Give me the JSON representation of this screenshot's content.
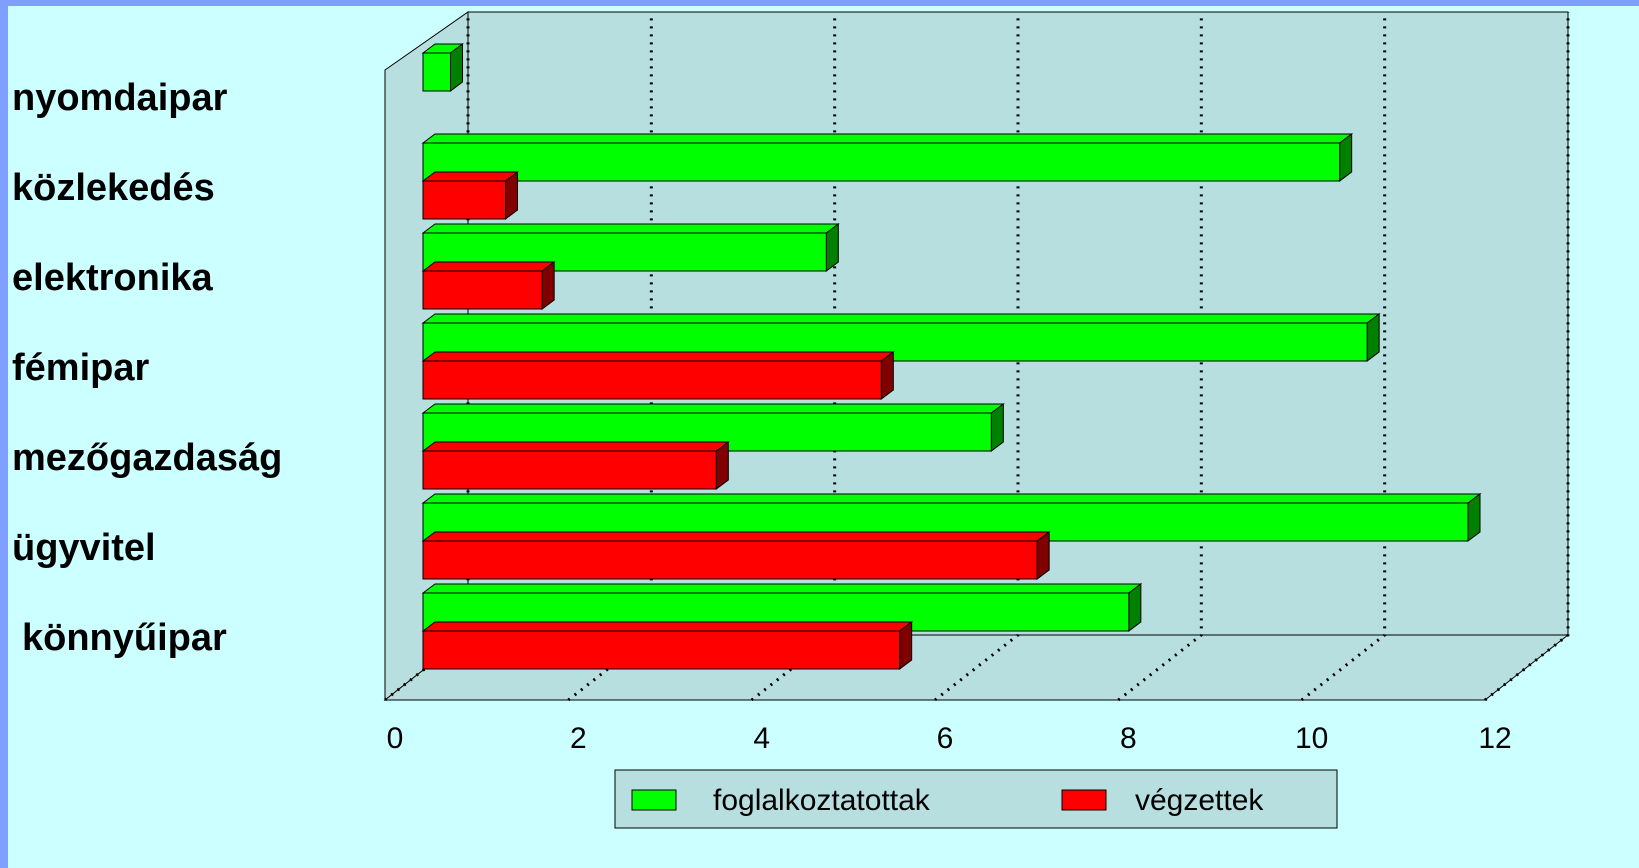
{
  "chart_data": {
    "type": "bar3d-horizontal",
    "categories": [
      "nyomdaipar",
      "közlekedés",
      "elektronika",
      "fémipar",
      "mezőgazdaság",
      "ügyvitel",
      "könnyűipar"
    ],
    "series": [
      {
        "name": "foglalkoztatottak",
        "color": "#00ff00",
        "side": "#008000",
        "values": [
          0.3,
          10,
          4.4,
          10.3,
          6.2,
          11.4,
          7.7
        ]
      },
      {
        "name": "végzettek",
        "color": "#ff0000",
        "side": "#800000",
        "values": [
          0,
          0.9,
          1.3,
          5,
          3.2,
          6.7,
          5.2
        ]
      }
    ],
    "xlim": [
      0,
      12
    ],
    "xticks": [
      0,
      2,
      4,
      6,
      8,
      10,
      12
    ],
    "grid": true
  }
}
